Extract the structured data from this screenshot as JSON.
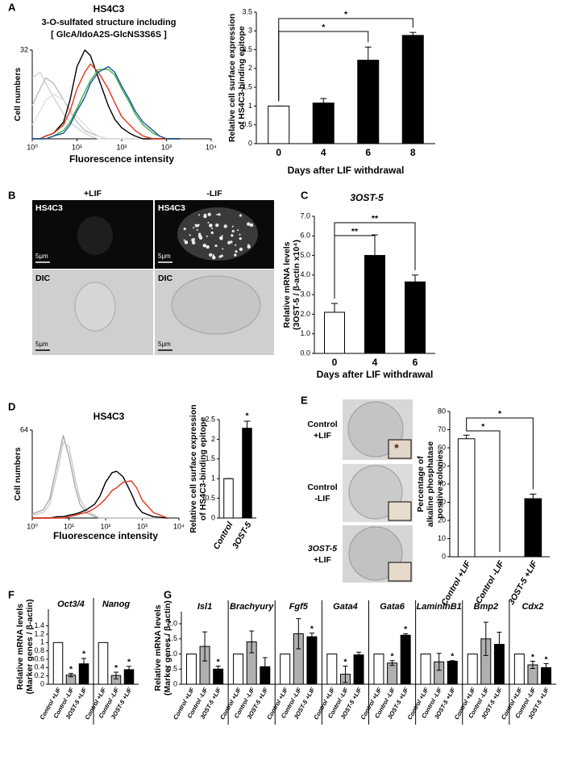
{
  "panels": {
    "letters": [
      "A",
      "B",
      "C",
      "D",
      "E",
      "F",
      "G"
    ],
    "B": {
      "columns": [
        "+LIF",
        "-LIF"
      ],
      "rows": [
        "HS4C3",
        "DIC"
      ],
      "scale": "5μm"
    },
    "E": {
      "rows": [
        [
          "Control",
          "+LIF"
        ],
        [
          "Control",
          "-LIF"
        ],
        [
          "3OST-5",
          "+LIF"
        ]
      ]
    }
  },
  "chart_data": [
    {
      "type": "line",
      "title": "HS4C3",
      "subtitle": [
        "3-O-sulfated structure including",
        "[ GlcA/IdoA2S-GlcNS3S6S ]"
      ],
      "ylabel": [
        "Cell numbers"
      ],
      "xlabel": "Fluorescence intensity",
      "log_x": true,
      "x": [
        1,
        1.5,
        2,
        3,
        5,
        7,
        10,
        15,
        20,
        30,
        50,
        70,
        100,
        150,
        200,
        300,
        500,
        700,
        1000,
        2000
      ],
      "xlim": [
        1,
        10000
      ],
      "xticks": [
        {
          "value": 1,
          "label": "10⁰"
        },
        {
          "value": 10,
          "label": "10¹"
        },
        {
          "value": 100,
          "label": "10²"
        },
        {
          "value": 1000,
          "label": "10³"
        },
        {
          "value": 10000,
          "label": "10⁴"
        }
      ],
      "ylim": [
        0,
        32
      ],
      "yticks": [
        32
      ],
      "series": [
        {
          "color": "#d4d4d4",
          "values": [
            22,
            24,
            20,
            15,
            9,
            6,
            4,
            2,
            1,
            0,
            0,
            0,
            0,
            0,
            0,
            0,
            0,
            0,
            0,
            0
          ]
        },
        {
          "color": "#bdbdbd",
          "values": [
            12,
            18,
            22,
            20,
            14,
            10,
            6,
            3,
            2,
            1,
            0,
            0,
            0,
            0,
            0,
            0,
            0,
            0,
            0,
            0
          ]
        },
        {
          "color": "#e0e0e0",
          "values": [
            5,
            10,
            14,
            16,
            14,
            11,
            8,
            5,
            3,
            1,
            0,
            0,
            0,
            0,
            0,
            0,
            0,
            0,
            0,
            0
          ]
        },
        {
          "color": "#000000",
          "values": [
            0,
            0,
            1,
            2,
            6,
            14,
            26,
            32,
            30,
            22,
            12,
            7,
            4,
            2,
            1,
            0,
            0,
            0,
            0,
            0
          ]
        },
        {
          "color": "#e8321e",
          "values": [
            0,
            0,
            1,
            2,
            5,
            10,
            18,
            24,
            27,
            24,
            18,
            13,
            8,
            5,
            3,
            1,
            0,
            0,
            0,
            0
          ]
        },
        {
          "color": "#3cb44b",
          "values": [
            0,
            0,
            0,
            1,
            3,
            6,
            11,
            17,
            21,
            25,
            25,
            23,
            18,
            13,
            9,
            5,
            2,
            1,
            0,
            0
          ]
        },
        {
          "color": "#1f4e9c",
          "values": [
            0,
            0,
            0,
            1,
            2,
            5,
            10,
            15,
            20,
            24,
            26,
            24,
            19,
            14,
            10,
            6,
            3,
            1,
            0,
            0
          ]
        }
      ]
    },
    {
      "type": "bar",
      "ylabel": [
        "Relative cell surface expression",
        "of HS4C3-binding epitope"
      ],
      "xlabel": "Days after LIF withdrawal",
      "categories": [
        "0",
        "4",
        "6",
        "8"
      ],
      "values": [
        1,
        1.08,
        2.22,
        2.88
      ],
      "errors": [
        0,
        0.12,
        0.35,
        0.08
      ],
      "colors": [
        "#ffffff",
        "#000000",
        "#000000",
        "#000000"
      ],
      "ylim": [
        0,
        3.5
      ],
      "yticks": [
        0,
        0.5,
        1,
        1.5,
        2,
        2.5,
        3,
        3.5
      ],
      "comparisons": [
        {
          "between": [
            "0",
            "6"
          ],
          "label": "*"
        },
        {
          "between": [
            "0",
            "8"
          ],
          "label": "*"
        }
      ]
    },
    {
      "type": "bar",
      "title": "3OST-5",
      "ylabel": [
        "Relative mRNA levels",
        "(3OST-5 / β-actin x10⁴)"
      ],
      "xlabel": "Days after LIF withdrawal",
      "categories": [
        "0",
        "4",
        "6"
      ],
      "values": [
        2.1,
        5.0,
        3.65
      ],
      "errors": [
        0.45,
        1.05,
        0.35
      ],
      "colors": [
        "#ffffff",
        "#000000",
        "#000000"
      ],
      "ylim": [
        0,
        7
      ],
      "yticks": [
        {
          "value": 0,
          "label": "0.0"
        },
        {
          "value": 1,
          "label": "1.0"
        },
        {
          "value": 2,
          "label": "2.0"
        },
        {
          "value": 3,
          "label": "3.0"
        },
        {
          "value": 4,
          "label": "4.0"
        },
        {
          "value": 5,
          "label": "5.0"
        },
        {
          "value": 6,
          "label": "6.0"
        },
        {
          "value": 7,
          "label": "7.0"
        }
      ],
      "comparisons": [
        {
          "between": [
            "0",
            "4"
          ],
          "label": "**"
        },
        {
          "between": [
            "0",
            "6"
          ],
          "label": "**"
        }
      ]
    },
    {
      "type": "line",
      "title": "HS4C3",
      "ylabel": [
        "Cell numbers"
      ],
      "xlabel": "Fluorescence intensity",
      "log_x": true,
      "x": [
        1,
        2,
        3,
        5,
        7,
        10,
        15,
        20,
        30,
        50,
        70,
        100,
        150,
        200,
        300,
        500,
        700,
        1000,
        2000,
        5000
      ],
      "xlim": [
        1,
        10000
      ],
      "xticks": [
        {
          "value": 1,
          "label": "10⁰"
        },
        {
          "value": 10,
          "label": "10¹"
        },
        {
          "value": 100,
          "label": "10²"
        },
        {
          "value": 1000,
          "label": "10³"
        },
        {
          "value": 10000,
          "label": "10⁴"
        }
      ],
      "ylim": [
        0,
        64
      ],
      "yticks": [
        64
      ],
      "series": [
        {
          "color": "#a8a8a8",
          "values": [
            3,
            6,
            14,
            42,
            60,
            45,
            22,
            10,
            4,
            1,
            0,
            0,
            0,
            0,
            0,
            0,
            0,
            0,
            0,
            0
          ]
        },
        {
          "color": "#c8c8c8",
          "values": [
            2,
            4,
            10,
            35,
            55,
            52,
            28,
            14,
            6,
            2,
            0,
            0,
            0,
            0,
            0,
            0,
            0,
            0,
            0,
            0
          ]
        },
        {
          "color": "#000000",
          "values": [
            0,
            0,
            0,
            1,
            1,
            2,
            3,
            4,
            6,
            10,
            16,
            26,
            33,
            34,
            30,
            18,
            9,
            4,
            1,
            0
          ]
        },
        {
          "color": "#e8321e",
          "values": [
            0,
            0,
            0,
            0,
            0,
            1,
            2,
            3,
            4,
            7,
            10,
            14,
            20,
            22,
            26,
            27,
            22,
            13,
            4,
            0
          ]
        }
      ]
    },
    {
      "type": "bar",
      "ylabel": [
        "Relative cell surface expression",
        "of HS4C3-binding epitope"
      ],
      "categories": [
        "Control",
        "3OST-5"
      ],
      "values": [
        1,
        2.28
      ],
      "errors": [
        0,
        0.18
      ],
      "annotations": [
        null,
        "*"
      ],
      "colors": [
        "#ffffff",
        "#000000"
      ],
      "ylim": [
        0,
        2.5
      ],
      "yticks": [
        0,
        0.5,
        1,
        1.5,
        2,
        2.5
      ]
    },
    {
      "type": "bar",
      "ylabel": [
        "Percentage of",
        "alkaline phosphatase",
        "positive colonies"
      ],
      "categories": [
        "Control +LIF",
        "Control -LIF",
        "3OST-5 +LIF"
      ],
      "values": [
        65,
        0,
        32
      ],
      "errors": [
        2,
        0,
        2.5
      ],
      "colors": [
        "#ffffff",
        "#000000",
        "#000000"
      ],
      "ylim": [
        0,
        80
      ],
      "yticks": [
        0,
        10,
        20,
        30,
        40,
        50,
        60,
        70,
        80
      ],
      "comparisons": [
        {
          "between": [
            "Control +LIF",
            "Control -LIF"
          ],
          "label": "*"
        },
        {
          "between": [
            "Control +LIF",
            "3OST-5 +LIF"
          ],
          "label": "*"
        }
      ]
    },
    {
      "type": "grouped_bar",
      "ylabel": [
        "Relative mRNA levels",
        "(Marker genes / β-actin)"
      ],
      "categories": [
        "Oct3/4",
        "Nanog"
      ],
      "ylim": [
        0,
        1.8
      ],
      "yticks": [
        0,
        0.2,
        0.4,
        0.6,
        0.8,
        1,
        1.2,
        1.4
      ],
      "series": [
        {
          "name": "Control +LIF",
          "color": "#ffffff",
          "values": [
            1,
            1
          ]
        },
        {
          "name": "Control -LIF",
          "color": "#b0b0b0",
          "values": [
            0.22,
            0.21
          ],
          "errors": [
            0.04,
            0.08
          ],
          "annotations": [
            "*",
            "*"
          ]
        },
        {
          "name": "3OST-5 +LIF",
          "color": "#000000",
          "values": [
            0.49,
            0.35
          ],
          "errors": [
            0.13,
            0.08
          ],
          "annotations": [
            "*",
            "*"
          ]
        }
      ]
    },
    {
      "type": "grouped_bar",
      "ylabel": [
        "Relative mRNA levels",
        "(Marker genes / β-actin)"
      ],
      "categories": [
        "Isl1",
        "Brachyury",
        "Fgf5",
        "Gata4",
        "Gata6",
        "LamininB1",
        "Bmp2",
        "Cdx2"
      ],
      "ylim": [
        0,
        2.4
      ],
      "yticks": [
        0,
        0.5,
        {
          "value": 1,
          "label": "1.0"
        },
        1.5,
        {
          "value": 2,
          "label": "2.0"
        }
      ],
      "series": [
        {
          "name": "Control +LIF",
          "color": "#ffffff",
          "values": [
            1,
            1,
            1,
            1,
            1,
            1,
            1,
            1
          ]
        },
        {
          "name": "Control -LIF",
          "color": "#b0b0b0",
          "values": [
            1.25,
            1.4,
            1.67,
            0.33,
            0.7,
            0.74,
            1.5,
            0.64
          ],
          "errors": [
            0.48,
            0.36,
            0.5,
            0.27,
            0.08,
            0.28,
            0.55,
            0.12
          ],
          "annotations": [
            null,
            null,
            null,
            "*",
            "*",
            null,
            null,
            "*"
          ]
        },
        {
          "name": "3OST-5 +LIF",
          "color": "#000000",
          "values": [
            0.5,
            0.58,
            1.57,
            0.97,
            1.62,
            0.76,
            1.32,
            0.55
          ],
          "errors": [
            0.1,
            0.3,
            0.12,
            0.09,
            0.05,
            0.02,
            0.4,
            0.13
          ],
          "annotations": [
            "*",
            null,
            "*",
            null,
            "*",
            "*",
            null,
            "*"
          ]
        }
      ]
    }
  ]
}
